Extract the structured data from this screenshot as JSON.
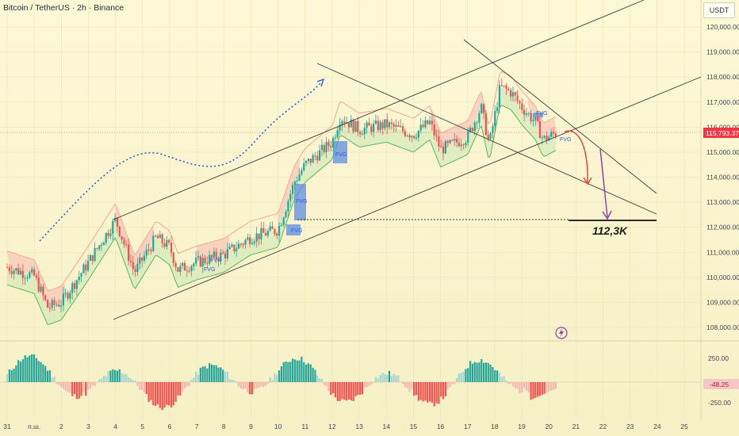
{
  "header": {
    "title": "Bitcoin / TetherUS · 2h · Binance",
    "currency_button": "USDT"
  },
  "colors": {
    "up": "#26a69a",
    "down": "#ef5350",
    "price_tag": "#f23645",
    "fvg_box": "#5b8ee6",
    "blue_arrow": "#2f5bd6",
    "purple_arrow": "#8e44ad",
    "red_arrow": "#e53935"
  },
  "chart_data": {
    "type": "candlestick",
    "y_axis_labels": [
      "120,000.00",
      "119,000.00",
      "118,000.00",
      "117,000.00",
      "116,000.00",
      "115,000.00",
      "114,000.00",
      "113,000.00",
      "112,000.00",
      "111,000.00",
      "110,000.00",
      "109,000.00",
      "108,000.00"
    ],
    "ylim": [
      107500,
      120700
    ],
    "current_price": "115,793.37",
    "x_axis_labels": [
      "31",
      "п.ш.",
      "2",
      "3",
      "4",
      "5",
      "6",
      "7",
      "8",
      "9",
      "10",
      "11",
      "12",
      "13",
      "14",
      "15",
      "16",
      "17",
      "18",
      "19",
      "20",
      "21",
      "22",
      "23",
      "24",
      "25"
    ],
    "price_path": [
      [
        0,
        110400
      ],
      [
        1,
        110050
      ],
      [
        1.5,
        108800
      ],
      [
        2,
        109000
      ],
      [
        3,
        110600
      ],
      [
        4,
        112300
      ],
      [
        4.7,
        110200
      ],
      [
        5.5,
        111600
      ],
      [
        6,
        111200
      ],
      [
        6.3,
        110300
      ],
      [
        7,
        110600
      ],
      [
        8,
        110900
      ],
      [
        9,
        111600
      ],
      [
        10,
        111900
      ],
      [
        10.6,
        113800
      ],
      [
        11,
        114500
      ],
      [
        12,
        115400
      ],
      [
        12.3,
        116400
      ],
      [
        13,
        115900
      ],
      [
        14,
        116100
      ],
      [
        15,
        115700
      ],
      [
        15.6,
        116200
      ],
      [
        16,
        115100
      ],
      [
        17,
        115600
      ],
      [
        17.5,
        116800
      ],
      [
        17.8,
        115300
      ],
      [
        18.2,
        117600
      ],
      [
        18.6,
        117400
      ],
      [
        19,
        116800
      ],
      [
        19.5,
        116200
      ],
      [
        19.8,
        115500
      ],
      [
        20.3,
        115800
      ]
    ],
    "annotations": [
      {
        "text": "112,3K"
      },
      {
        "text": "FVG"
      },
      {
        "text": "FVG"
      },
      {
        "text": "FVG"
      },
      {
        "text": "FVG"
      },
      {
        "text": "FVG"
      },
      {
        "text": "FVG"
      },
      {
        "text": "FVG"
      }
    ],
    "target_price": 112300,
    "oscillator": {
      "y_axis_labels": [
        "250.00",
        "-48.25",
        "-250.00"
      ],
      "current_value": "-48.25",
      "ylim": [
        -300,
        300
      ]
    }
  }
}
